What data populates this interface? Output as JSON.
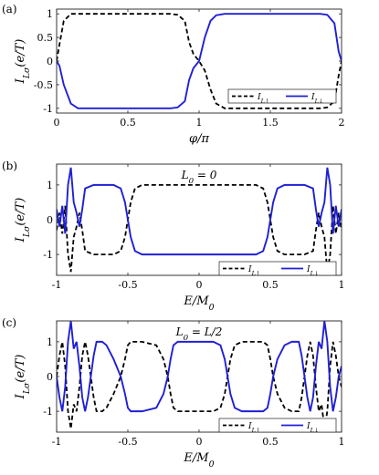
{
  "colors": {
    "up": "#000000",
    "down": "#1f1fd6",
    "frame": "#222222"
  },
  "chart_data": [
    {
      "panel_label": "(a)",
      "type": "line",
      "xlabel": "φ/π",
      "ylabel": "I_Lσ(e/T)",
      "xlim": [
        0,
        2
      ],
      "ylim": [
        -1.1,
        1.1
      ],
      "xticks": [
        "0",
        "0.5",
        "1",
        "1.5",
        "2"
      ],
      "xtick_values": [
        0,
        0.5,
        1,
        1.5,
        2
      ],
      "yticks": [
        "-1",
        "-0.5",
        "0",
        "0.5",
        "1"
      ],
      "ytick_values": [
        -1,
        -0.5,
        0,
        0.5,
        1
      ],
      "annotation": "",
      "legend_position": "lower-right",
      "series": [
        {
          "name": "I_L↑",
          "style": "dashed",
          "x": [
            0,
            0.02,
            0.05,
            0.1,
            0.15,
            0.2,
            0.5,
            0.8,
            0.85,
            0.9,
            0.93,
            0.96,
            1.0,
            1.04,
            1.08,
            1.12,
            1.18,
            1.5,
            1.85,
            1.9,
            1.95,
            1.98,
            2.0
          ],
          "y": [
            0,
            0.35,
            0.85,
            1.0,
            1.0,
            1.0,
            1.0,
            1.0,
            0.98,
            0.85,
            0.4,
            0.15,
            0.0,
            -0.2,
            -0.6,
            -0.9,
            -1.0,
            -1.0,
            -1.0,
            -0.98,
            -0.85,
            -0.3,
            0
          ]
        },
        {
          "name": "I_L↓",
          "style": "solid",
          "x": [
            0,
            0.02,
            0.05,
            0.1,
            0.15,
            0.2,
            0.5,
            0.8,
            0.85,
            0.9,
            0.93,
            0.96,
            1.0,
            1.04,
            1.08,
            1.12,
            1.18,
            1.5,
            1.85,
            1.9,
            1.95,
            1.98,
            2.0
          ],
          "y": [
            0,
            -0.1,
            -0.5,
            -0.9,
            -1.0,
            -1.0,
            -1.0,
            -1.0,
            -0.98,
            -0.85,
            -0.4,
            -0.15,
            0.0,
            0.5,
            0.85,
            0.97,
            1.0,
            1.0,
            1.0,
            0.98,
            0.8,
            0.2,
            0
          ]
        }
      ]
    },
    {
      "panel_label": "(b)",
      "type": "line",
      "xlabel": "E/M_0",
      "ylabel": "I_Lσ(e/T)",
      "xlim": [
        -1,
        1
      ],
      "ylim": [
        -1.6,
        1.6
      ],
      "xticks": [
        "-1",
        "-0.5",
        "0",
        "0.5",
        "1"
      ],
      "xtick_values": [
        -1,
        -0.5,
        0,
        0.5,
        1
      ],
      "yticks": [
        "-1",
        "0",
        "1"
      ],
      "ytick_values": [
        -1,
        0,
        1
      ],
      "annotation": "L_0 = 0",
      "legend_position": "bottom-right",
      "series": [
        {
          "name": "I_L↑",
          "style": "dashed",
          "x": [
            -1,
            -0.98,
            -0.96,
            -0.94,
            -0.92,
            -0.9,
            -0.88,
            -0.86,
            -0.84,
            -0.82,
            -0.8,
            -0.74,
            -0.7,
            -0.6,
            -0.55,
            -0.52,
            -0.5,
            -0.48,
            -0.45,
            -0.4,
            -0.3,
            0,
            0.3,
            0.4,
            0.45,
            0.48,
            0.5,
            0.52,
            0.55,
            0.6,
            0.7,
            0.74,
            0.8,
            0.82,
            0.84,
            0.86,
            0.88,
            0.9,
            0.92,
            0.94,
            0.96,
            0.98,
            1
          ],
          "y": [
            -0.3,
            0.2,
            -0.4,
            0.4,
            -1.0,
            -1.5,
            -0.5,
            -0.2,
            0.2,
            -0.3,
            -0.9,
            -1.0,
            -1.0,
            -1.0,
            -0.9,
            -0.5,
            0.0,
            0.5,
            0.9,
            1.0,
            1.0,
            1.0,
            1.0,
            1.0,
            0.9,
            0.5,
            0.0,
            -0.5,
            -0.9,
            -1.0,
            -1.0,
            -1.0,
            -0.9,
            -0.3,
            0.2,
            -0.2,
            -0.5,
            -1.5,
            -1.0,
            0.4,
            -0.4,
            0.2,
            -0.3
          ]
        },
        {
          "name": "I_L↓",
          "style": "solid",
          "x": [
            -1,
            -0.98,
            -0.96,
            -0.94,
            -0.92,
            -0.9,
            -0.88,
            -0.86,
            -0.84,
            -0.82,
            -0.8,
            -0.74,
            -0.7,
            -0.6,
            -0.55,
            -0.52,
            -0.5,
            -0.48,
            -0.45,
            -0.4,
            -0.3,
            0,
            0.3,
            0.4,
            0.45,
            0.48,
            0.5,
            0.52,
            0.55,
            0.6,
            0.7,
            0.74,
            0.8,
            0.82,
            0.84,
            0.86,
            0.88,
            0.9,
            0.92,
            0.94,
            0.96,
            0.98,
            1
          ],
          "y": [
            0.3,
            -0.2,
            0.4,
            -0.4,
            1.0,
            1.5,
            0.5,
            0.2,
            -0.2,
            0.3,
            0.9,
            1.0,
            1.0,
            1.0,
            0.9,
            0.5,
            0.0,
            -0.5,
            -0.9,
            -1.0,
            -1.0,
            -1.0,
            -1.0,
            -1.0,
            -0.9,
            -0.5,
            0.0,
            0.5,
            0.9,
            1.0,
            1.0,
            1.0,
            0.9,
            0.3,
            -0.2,
            0.2,
            0.5,
            1.5,
            1.0,
            -0.4,
            0.4,
            -0.2,
            0.3
          ]
        }
      ]
    },
    {
      "panel_label": "(c)",
      "type": "line",
      "xlabel": "E/M_0",
      "ylabel": "I_Lσ(e/T)",
      "xlim": [
        -1,
        1
      ],
      "ylim": [
        -1.6,
        1.6
      ],
      "xticks": [
        "-1",
        "-0.5",
        "0",
        "0.5",
        "1"
      ],
      "xtick_values": [
        -1,
        -0.5,
        0,
        0.5,
        1
      ],
      "yticks": [
        "-1",
        "0",
        "1"
      ],
      "ytick_values": [
        -1,
        0,
        1
      ],
      "annotation": "L_0 = L/2",
      "legend_position": "bottom-right",
      "series": [
        {
          "name": "I_L↑",
          "style": "dashed",
          "x": [
            -1,
            -0.98,
            -0.96,
            -0.94,
            -0.92,
            -0.9,
            -0.88,
            -0.86,
            -0.84,
            -0.82,
            -0.8,
            -0.78,
            -0.76,
            -0.74,
            -0.72,
            -0.7,
            -0.68,
            -0.65,
            -0.6,
            -0.55,
            -0.52,
            -0.5,
            -0.48,
            -0.45,
            -0.4,
            -0.3,
            -0.25,
            -0.22,
            -0.2,
            -0.18,
            -0.15,
            -0.1,
            -0.05,
            0,
            0.05,
            0.1,
            0.15,
            0.18,
            0.2,
            0.22,
            0.25,
            0.3,
            0.4,
            0.45,
            0.48,
            0.5,
            0.52,
            0.55,
            0.6,
            0.65,
            0.68,
            0.7,
            0.72,
            0.74,
            0.76,
            0.78,
            0.8,
            0.82,
            0.84,
            0.86,
            0.88,
            0.9,
            0.92,
            0.94,
            0.96,
            0.98,
            1
          ],
          "y": [
            0.0,
            0.6,
            1.0,
            0.3,
            -1.0,
            -1.5,
            -0.8,
            -1.0,
            -0.3,
            0.6,
            1.0,
            0.6,
            0.0,
            -0.6,
            -1.0,
            -1.0,
            -1.0,
            -0.9,
            -0.5,
            0.0,
            0.5,
            0.9,
            1.0,
            1.0,
            1.0,
            0.9,
            0.5,
            0.0,
            -0.5,
            -0.9,
            -1.0,
            -1.0,
            -1.0,
            -1.0,
            -1.0,
            -1.0,
            -0.9,
            -0.5,
            0.0,
            0.5,
            0.9,
            1.0,
            1.0,
            1.0,
            0.9,
            0.5,
            0.0,
            -0.5,
            -0.9,
            -1.0,
            -1.0,
            -1.0,
            -0.6,
            0.0,
            0.6,
            1.0,
            0.6,
            -0.3,
            -1.0,
            -0.8,
            -1.5,
            -1.0,
            0.3,
            1.0,
            0.6,
            0.0,
            -0.3
          ]
        },
        {
          "name": "I_L↓",
          "style": "solid",
          "x": [
            -1,
            -0.98,
            -0.96,
            -0.94,
            -0.92,
            -0.9,
            -0.88,
            -0.86,
            -0.84,
            -0.82,
            -0.8,
            -0.78,
            -0.76,
            -0.74,
            -0.72,
            -0.7,
            -0.68,
            -0.65,
            -0.6,
            -0.55,
            -0.52,
            -0.5,
            -0.48,
            -0.45,
            -0.4,
            -0.3,
            -0.25,
            -0.22,
            -0.2,
            -0.18,
            -0.15,
            -0.1,
            -0.05,
            0,
            0.05,
            0.1,
            0.15,
            0.18,
            0.2,
            0.22,
            0.25,
            0.3,
            0.4,
            0.45,
            0.48,
            0.5,
            0.52,
            0.55,
            0.6,
            0.65,
            0.68,
            0.7,
            0.72,
            0.74,
            0.76,
            0.78,
            0.8,
            0.82,
            0.84,
            0.86,
            0.88,
            0.9,
            0.92,
            0.94,
            0.96,
            0.98,
            1
          ],
          "y": [
            0.0,
            -0.6,
            -1.0,
            -0.3,
            1.0,
            1.6,
            0.8,
            1.0,
            0.3,
            -0.6,
            -1.0,
            -0.6,
            0.0,
            0.6,
            1.0,
            1.0,
            1.0,
            0.9,
            0.5,
            0.0,
            -0.5,
            -0.9,
            -1.0,
            -1.0,
            -1.0,
            -0.9,
            -0.5,
            0.0,
            0.5,
            0.9,
            1.0,
            1.0,
            1.0,
            1.0,
            1.0,
            1.0,
            0.9,
            0.5,
            0.0,
            -0.5,
            -0.9,
            -1.0,
            -1.0,
            -1.0,
            -0.9,
            -0.5,
            0.0,
            0.5,
            0.9,
            1.0,
            1.0,
            1.0,
            0.6,
            0.0,
            -0.6,
            -1.0,
            -0.6,
            0.3,
            1.0,
            0.8,
            1.6,
            1.0,
            -0.3,
            -1.0,
            -0.6,
            0.0,
            0.3
          ]
        }
      ]
    }
  ]
}
